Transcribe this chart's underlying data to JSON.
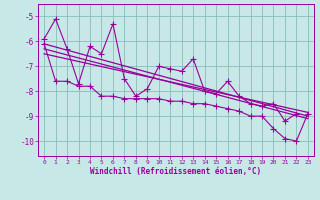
{
  "xlabel": "Windchill (Refroidissement éolien,°C)",
  "bg_color": "#c8e8e8",
  "grid_color": "#88bbbb",
  "line_color": "#990099",
  "xlim": [
    -0.5,
    23.5
  ],
  "ylim": [
    -10.6,
    -4.5
  ],
  "yticks": [
    -10,
    -9,
    -8,
    -7,
    -6,
    -5
  ],
  "xticks": [
    0,
    1,
    2,
    3,
    4,
    5,
    6,
    7,
    8,
    9,
    10,
    11,
    12,
    13,
    14,
    15,
    16,
    17,
    18,
    19,
    20,
    21,
    22,
    23
  ],
  "series": [
    {
      "x": [
        0,
        1,
        2,
        3,
        4,
        5,
        6,
        7,
        8,
        9,
        10,
        11,
        12,
        13,
        14,
        15,
        16,
        17,
        18,
        19,
        20,
        21,
        22
      ],
      "y": [
        -5.9,
        -5.1,
        -6.3,
        -7.7,
        -6.2,
        -6.5,
        -5.3,
        -7.5,
        -8.2,
        -7.9,
        -7.0,
        -7.1,
        -7.2,
        -6.7,
        -8.0,
        -8.1,
        -7.6,
        -8.2,
        -8.5,
        -8.6,
        -8.5,
        -9.2,
        -8.9
      ],
      "marker": "+",
      "lw": 0.8,
      "ms": 4
    },
    {
      "x": [
        0,
        1,
        2,
        3,
        4,
        5,
        6,
        7,
        8,
        9,
        10,
        11,
        12,
        13,
        14,
        15,
        16,
        17,
        18,
        19,
        20,
        21,
        22,
        23
      ],
      "y": [
        -6.1,
        -7.6,
        -7.6,
        -7.8,
        -7.8,
        -8.2,
        -8.2,
        -8.3,
        -8.3,
        -8.3,
        -8.3,
        -8.4,
        -8.4,
        -8.5,
        -8.5,
        -8.6,
        -8.7,
        -8.8,
        -9.0,
        -9.0,
        -9.5,
        -9.9,
        -10.0,
        -8.9
      ],
      "marker": "+",
      "lw": 0.8,
      "ms": 4
    },
    {
      "x": [
        0,
        23
      ],
      "y": [
        -6.1,
        -9.0
      ],
      "marker": null,
      "lw": 0.9,
      "ms": 0
    },
    {
      "x": [
        0,
        23
      ],
      "y": [
        -6.3,
        -9.1
      ],
      "marker": null,
      "lw": 0.9,
      "ms": 0
    },
    {
      "x": [
        0,
        23
      ],
      "y": [
        -6.5,
        -8.85
      ],
      "marker": null,
      "lw": 0.9,
      "ms": 0
    }
  ]
}
